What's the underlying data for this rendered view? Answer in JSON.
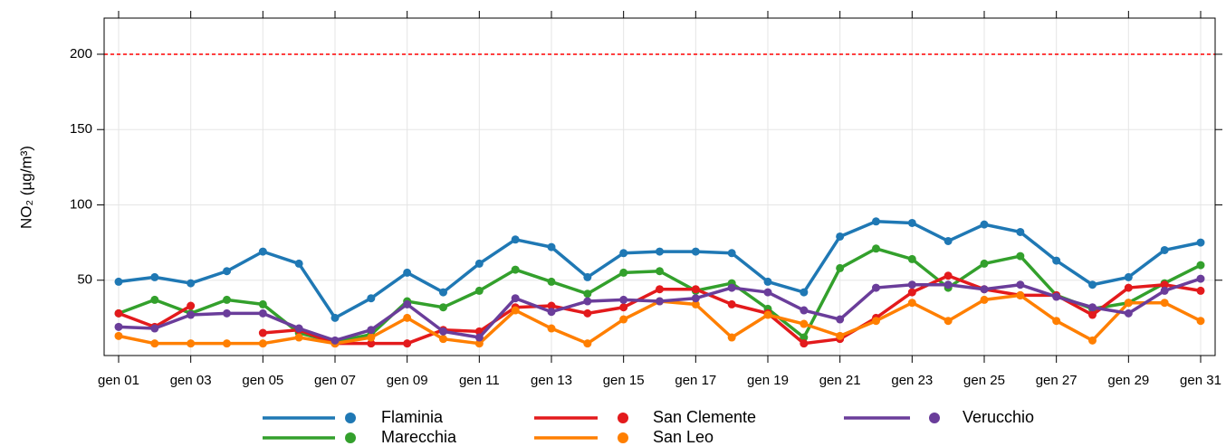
{
  "chart_data": {
    "type": "line",
    "ylabel": "NO₂ (µg/m³)",
    "categories": [
      "gen 01",
      null,
      "gen 03",
      null,
      "gen 05",
      null,
      "gen 07",
      null,
      "gen 09",
      null,
      "gen 11",
      null,
      "gen 13",
      null,
      "gen 15",
      null,
      "gen 17",
      null,
      "gen 19",
      null,
      "gen 21",
      null,
      "gen 23",
      null,
      "gen 25",
      null,
      "gen 27",
      null,
      "gen 29",
      null,
      "gen 31"
    ],
    "ylim": [
      0,
      224
    ],
    "yticks": [
      50,
      100,
      150,
      200
    ],
    "grid": true,
    "hline": {
      "value": 200,
      "color": "#ff0000"
    },
    "series": [
      {
        "name": "Flaminia",
        "color": "#1f78b4",
        "values": [
          49,
          52,
          48,
          56,
          69,
          61,
          25,
          38,
          55,
          42,
          61,
          77,
          72,
          52,
          68,
          69,
          69,
          68,
          49,
          42,
          79,
          89,
          88,
          76,
          87,
          82,
          63,
          47,
          52,
          70,
          75
        ]
      },
      {
        "name": "Marecchia",
        "color": "#33a02c",
        "values": [
          28,
          37,
          28,
          37,
          34,
          15,
          9,
          14,
          36,
          32,
          43,
          57,
          49,
          41,
          55,
          56,
          43,
          48,
          31,
          12,
          58,
          71,
          64,
          45,
          61,
          66,
          40,
          31,
          35,
          48,
          60
        ]
      },
      {
        "name": "San Clemente",
        "color": "#e31a1c",
        "values": [
          28,
          19,
          33,
          null,
          15,
          17,
          8,
          8,
          8,
          17,
          16,
          32,
          33,
          28,
          32,
          44,
          44,
          34,
          28,
          8,
          11,
          25,
          42,
          53,
          44,
          40,
          40,
          27,
          45,
          47,
          43
        ]
      },
      {
        "name": "San Leo",
        "color": "#ff7f00",
        "values": [
          13,
          8,
          8,
          8,
          8,
          12,
          8,
          12,
          25,
          11,
          8,
          30,
          18,
          8,
          24,
          36,
          34,
          12,
          27,
          21,
          13,
          23,
          35,
          23,
          37,
          40,
          23,
          10,
          35,
          35,
          23
        ]
      },
      {
        "name": "Verucchio",
        "color": "#6a3d9a",
        "values": [
          19,
          18,
          27,
          28,
          28,
          18,
          10,
          17,
          34,
          16,
          12,
          38,
          29,
          36,
          37,
          36,
          38,
          45,
          42,
          30,
          24,
          45,
          47,
          47,
          44,
          47,
          39,
          32,
          28,
          43,
          51
        ]
      }
    ]
  }
}
